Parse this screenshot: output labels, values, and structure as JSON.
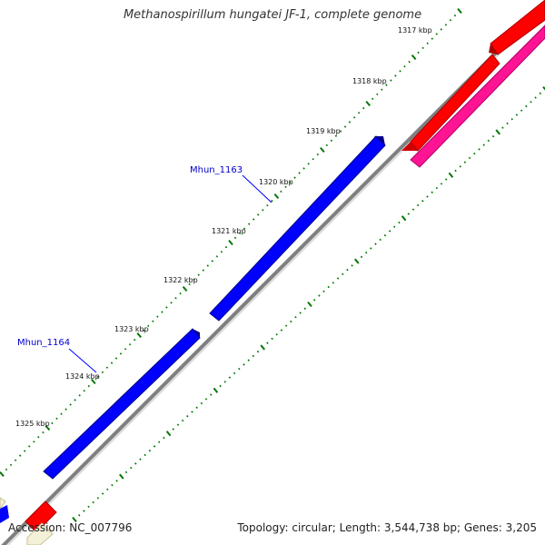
{
  "title": "Methanospirillum hungatei JF-1, complete genome",
  "footer": {
    "accession": "Accession: NC_007796",
    "topology": "Topology: circular; Length: 3,544,738 bp; Genes: 3,205"
  },
  "ruler": {
    "unit": "kbp",
    "labels": [
      "1317 kbp",
      "1318 kbp",
      "1319 kbp",
      "1320 kbp",
      "1321 kbp",
      "1322 kbp",
      "1323 kbp",
      "1324 kbp",
      "1325 kbp"
    ]
  },
  "genes": [
    {
      "id": "Mhun_1163",
      "label": "Mhun_1163",
      "strand": "+",
      "color": "#0000ff"
    },
    {
      "id": "Mhun_1164",
      "label": "Mhun_1164",
      "strand": "+",
      "color": "#0000ff"
    }
  ],
  "colors": {
    "forward_gene": "#0000ff",
    "reverse_gene_red": "#ff0000",
    "reverse_gene_pink": "#ff1493",
    "backbone": "#808080",
    "tick": "#007700",
    "label_color": "#0000cc"
  }
}
